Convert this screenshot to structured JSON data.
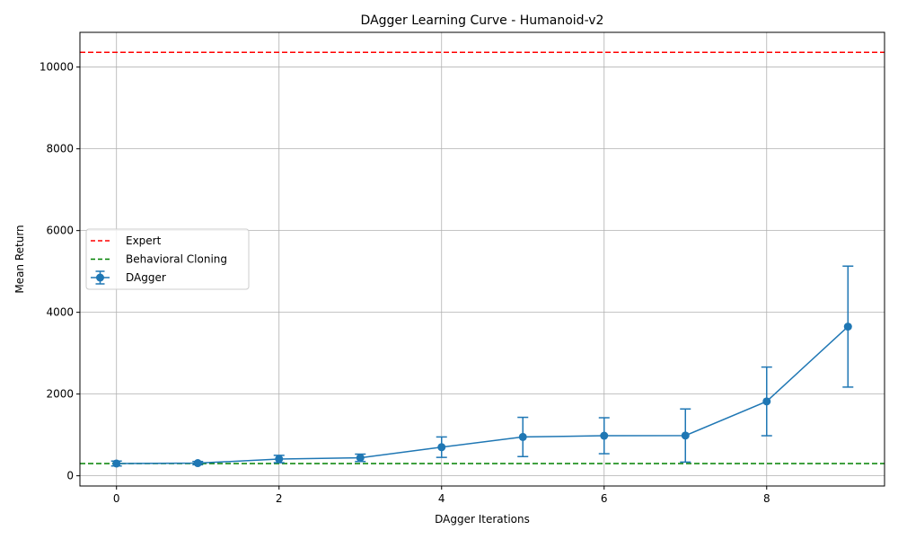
{
  "chart_data": {
    "type": "line",
    "title": "DAgger Learning Curve - Humanoid-v2",
    "xlabel": "DAgger Iterations",
    "ylabel": "Mean Return",
    "xlim": [
      -0.45,
      9.45
    ],
    "ylim": [
      -250,
      10850
    ],
    "xticks": [
      0,
      2,
      4,
      6,
      8
    ],
    "yticks": [
      0,
      2000,
      4000,
      6000,
      8000,
      10000
    ],
    "grid": true,
    "legend_position": "center-left",
    "series": [
      {
        "name": "DAgger",
        "kind": "errorbar",
        "color": "#1f77b4",
        "x": [
          0,
          1,
          2,
          3,
          4,
          5,
          6,
          7,
          8,
          9
        ],
        "y": [
          300,
          310,
          410,
          440,
          700,
          950,
          980,
          985,
          1820,
          3650
        ],
        "yerr": [
          60,
          40,
          90,
          90,
          250,
          480,
          440,
          650,
          840,
          1480
        ]
      },
      {
        "name": "Expert",
        "kind": "hline",
        "color": "#ff0000",
        "linestyle": "dashed",
        "y": 10360
      },
      {
        "name": "Behavioral Cloning",
        "kind": "hline",
        "color": "#008000",
        "linestyle": "dashed",
        "y": 300
      }
    ],
    "legend": [
      "Expert",
      "Behavioral Cloning",
      "DAgger"
    ]
  }
}
